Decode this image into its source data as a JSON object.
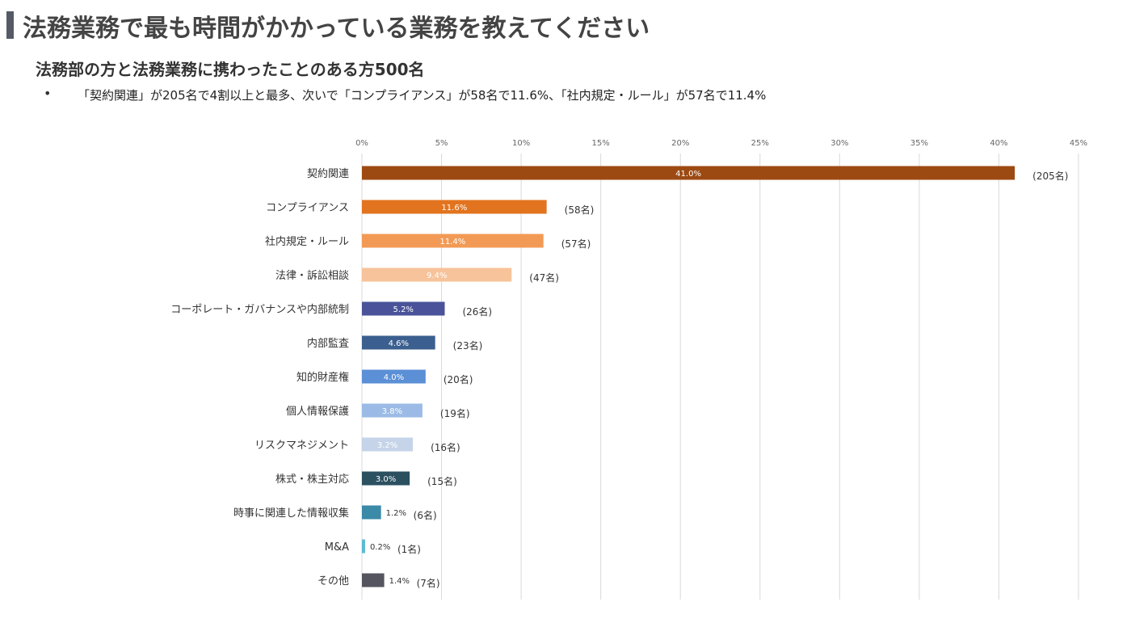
{
  "header": {
    "title": "法務業務で最も時間がかかっている業務を教えてください",
    "subtitle": "法務部の方と法務業務に携わったことのある方500名",
    "bullet_marker": "•",
    "bullet": "「契約関連」が205名で4割以上と最多、次いで「コンプライアンス」が58名で11.6%、「社内規定・ルール」が57名で11.4%"
  },
  "chart_data": {
    "type": "bar",
    "orientation": "horizontal",
    "xlim": [
      0,
      45
    ],
    "x_ticks": [
      "0%",
      "5%",
      "10%",
      "15%",
      "20%",
      "25%",
      "30%",
      "35%",
      "40%",
      "45%"
    ],
    "grid": true,
    "categories": [
      "契約関連",
      "コンプライアンス",
      "社内規定・ルール",
      "法律・訴訟相談",
      "コーポレート・ガバナンスや内部統制",
      "内部監査",
      "知的財産権",
      "個人情報保護",
      "リスクマネジメント",
      "株式・株主対応",
      "時事に関連した情報収集",
      "M&A",
      "その他"
    ],
    "values": [
      41.0,
      11.6,
      11.4,
      9.4,
      5.2,
      4.6,
      4.0,
      3.8,
      3.2,
      3.0,
      1.2,
      0.2,
      1.4
    ],
    "value_labels": [
      "41.0%",
      "11.6%",
      "11.4%",
      "9.4%",
      "5.2%",
      "4.6%",
      "4.0%",
      "3.8%",
      "3.2%",
      "3.0%",
      "1.2%",
      "0.2%",
      "1.4%"
    ],
    "counts": [
      "(205名)",
      "(58名)",
      "(57名)",
      "(47名)",
      "(26名)",
      "(23名)",
      "(20名)",
      "(19名)",
      "(16名)",
      "(15名)",
      "(6名)",
      "(1名)",
      "(7名)"
    ],
    "colors": [
      "#9c4a12",
      "#e2741f",
      "#f29a55",
      "#f7c39a",
      "#4a5399",
      "#3b5f8e",
      "#5b8fd6",
      "#9bbbe6",
      "#c5d4e8",
      "#2b5060",
      "#3a8aa8",
      "#5bbad4",
      "#555560"
    ],
    "label_colors": [
      "#ffffff",
      "#ffffff",
      "#ffffff",
      "#ffffff",
      "#ffffff",
      "#ffffff",
      "#ffffff",
      "#ffffff",
      "#ffffff",
      "#ffffff",
      "#333333",
      "#333333",
      "#333333"
    ],
    "label_inside": [
      true,
      true,
      true,
      true,
      true,
      true,
      true,
      true,
      true,
      true,
      false,
      false,
      false
    ]
  }
}
